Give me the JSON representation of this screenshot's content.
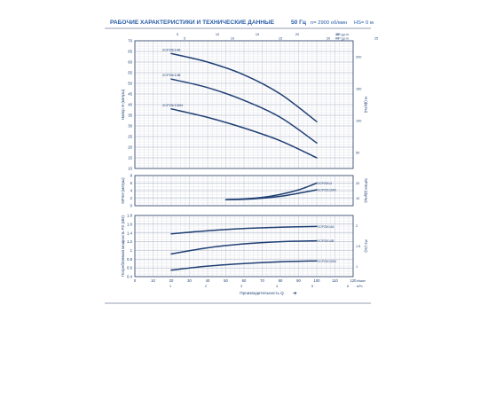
{
  "header": {
    "title": "РАБОЧИЕ ХАРАКТЕРИСТИКИ И ТЕХНИЧЕСКИЕ ДАННЫЕ",
    "frequency": "50 Гц",
    "speed": "n= 2900 об/мин",
    "hs": "HS= 0 м"
  },
  "colors": {
    "curve": "#1f3f73",
    "grid_minor": "#d9dde6",
    "grid_major": "#aab3c4",
    "frame": "#2a3f66",
    "title": "#2b5ea8"
  },
  "chart_data": [
    {
      "id": "head",
      "type": "line",
      "ylabel": "Напор H (метры)",
      "y2label": "H (футы)",
      "xlim": [
        0,
        120
      ],
      "ylim": [
        10,
        70
      ],
      "yticks": [
        10,
        15,
        20,
        25,
        30,
        35,
        40,
        45,
        50,
        55,
        60,
        65,
        70
      ],
      "y2ticks": [
        "200",
        "150",
        "100",
        "50"
      ],
      "top_scale_ticks": [
        "5",
        "10",
        "15",
        "20",
        "25"
      ],
      "top_scale_unit": "US g.p.m.",
      "top_scale2_ticks": [
        "5",
        "10",
        "15",
        "20",
        "25"
      ],
      "top_scale2_unit": "IMP g.p.m.",
      "series": [
        {
          "name": "2CP25/14A",
          "x": [
            20,
            40,
            60,
            80,
            100
          ],
          "y": [
            64,
            60,
            54,
            45,
            32
          ]
        },
        {
          "name": "2CP25/14B",
          "x": [
            20,
            40,
            60,
            80,
            100
          ],
          "y": [
            52,
            48,
            42,
            34,
            22
          ]
        },
        {
          "name": "2CP25/130N",
          "x": [
            20,
            40,
            60,
            80,
            100
          ],
          "y": [
            38,
            34,
            29,
            23,
            15
          ]
        }
      ]
    },
    {
      "id": "npsh",
      "type": "line",
      "ylabel": "NPSH (метры)",
      "y2label": "NPSH (футы)",
      "xlim": [
        0,
        120
      ],
      "ylim": [
        0,
        8
      ],
      "yticks": [
        0,
        2,
        4,
        6,
        8
      ],
      "y2ticks": [
        "20",
        "10"
      ],
      "series": [
        {
          "name": "2CP25/14",
          "x": [
            50,
            60,
            70,
            80,
            90,
            100
          ],
          "y": [
            1.6,
            1.8,
            2.2,
            3.0,
            4.2,
            6.0
          ]
        },
        {
          "name": "2CP25/130N",
          "x": [
            50,
            60,
            70,
            80,
            90,
            100
          ],
          "y": [
            1.6,
            1.7,
            2.0,
            2.5,
            3.3,
            4.2
          ]
        }
      ]
    },
    {
      "id": "power",
      "type": "line",
      "ylabel": "Потребляемая мощность P2 (кВт)",
      "y2label": "P2 (лс)",
      "xlabel": "Производительность Q",
      "xlim": [
        0,
        120
      ],
      "ylim": [
        0.4,
        1.8
      ],
      "yticks": [
        0.4,
        0.6,
        0.8,
        1.0,
        1.2,
        1.4,
        1.6,
        1.8
      ],
      "y2ticks": [
        "2",
        "1.5",
        "1"
      ],
      "xticks": [
        0,
        10,
        20,
        30,
        40,
        50,
        60,
        70,
        80,
        90,
        100,
        110,
        120
      ],
      "xunit": "л/мин",
      "bottom_scale_ticks": [
        "1",
        "2",
        "3",
        "4",
        "5",
        "6"
      ],
      "bottom_scale_unit": "м³/ч",
      "series": [
        {
          "name": "2CP25/14A",
          "x": [
            20,
            40,
            60,
            80,
            100
          ],
          "y": [
            1.38,
            1.45,
            1.5,
            1.53,
            1.55
          ]
        },
        {
          "name": "2CP25/14B",
          "x": [
            20,
            40,
            60,
            80,
            100
          ],
          "y": [
            0.92,
            1.06,
            1.15,
            1.2,
            1.22
          ]
        },
        {
          "name": "2CP25/130N",
          "x": [
            20,
            40,
            60,
            80,
            100
          ],
          "y": [
            0.55,
            0.64,
            0.7,
            0.74,
            0.76
          ]
        }
      ]
    }
  ]
}
